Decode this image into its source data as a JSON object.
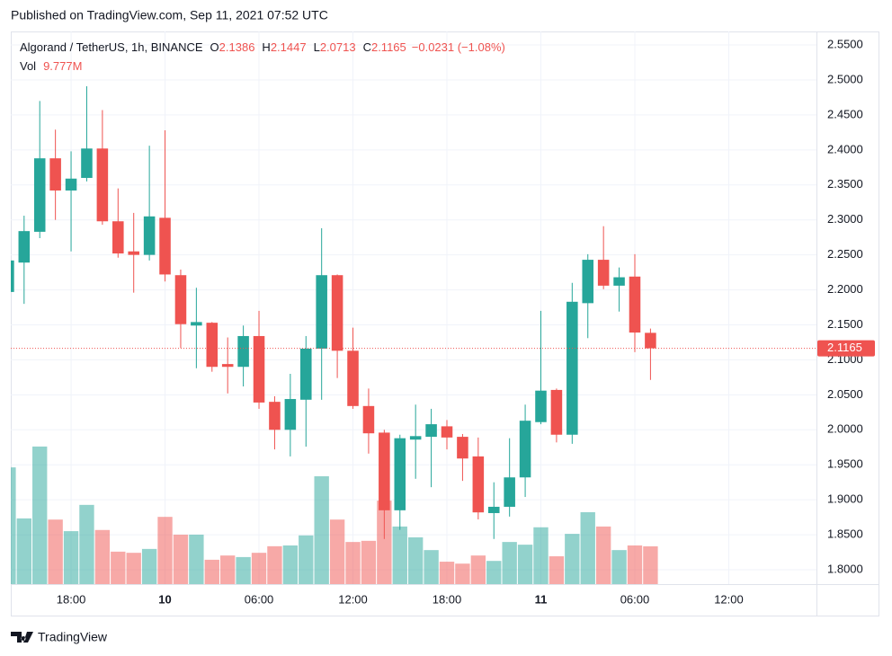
{
  "published": "Published on TradingView.com, Sep 11, 2021 07:52 UTC",
  "footer": "TradingView",
  "chart_data": {
    "type": "candlestick",
    "title": "Algorand / TetherUS, 1h, BINANCE",
    "ohlc_letters": [
      "O",
      "H",
      "L",
      "C"
    ],
    "change_label": "−0.0231 (−1.08%)",
    "up_color": "#26a69a",
    "down_color": "#ef5350",
    "x": [
      14,
      15,
      16,
      17,
      18,
      19,
      20,
      21,
      22,
      23,
      24,
      25,
      26,
      27,
      28,
      29,
      30,
      31,
      32,
      33,
      34,
      35,
      36,
      37,
      38,
      39,
      40,
      41,
      42,
      43,
      44,
      45,
      46,
      47,
      48,
      49,
      50,
      51,
      52,
      53,
      54,
      55
    ],
    "open": [
      2.197,
      2.239,
      2.283,
      2.388,
      2.342,
      2.36,
      2.402,
      2.298,
      2.255,
      2.25,
      2.303,
      2.221,
      2.149,
      2.153,
      2.094,
      2.09,
      2.134,
      2.04,
      2.0,
      2.043,
      2.116,
      2.221,
      2.113,
      2.034,
      1.996,
      1.885,
      1.986,
      1.99,
      2.005,
      1.99,
      1.962,
      1.881,
      1.89,
      1.932,
      2.011,
      2.057,
      1.993,
      2.181,
      2.243,
      2.206,
      2.219,
      2.1386
    ],
    "high": [
      2.245,
      2.306,
      2.47,
      2.429,
      2.398,
      2.491,
      2.457,
      2.345,
      2.31,
      2.406,
      2.428,
      2.229,
      2.203,
      2.154,
      2.132,
      2.149,
      2.17,
      2.048,
      2.08,
      2.134,
      2.288,
      2.222,
      2.146,
      2.059,
      2.0,
      1.993,
      2.036,
      2.03,
      2.014,
      1.994,
      1.989,
      1.925,
      1.988,
      2.036,
      2.17,
      2.059,
      2.21,
      2.251,
      2.291,
      2.232,
      2.251,
      2.1447
    ],
    "low": [
      2.19,
      2.18,
      2.274,
      2.3,
      2.255,
      2.355,
      2.293,
      2.246,
      2.196,
      2.242,
      2.212,
      2.117,
      2.088,
      2.083,
      2.052,
      2.062,
      2.03,
      1.972,
      1.962,
      1.976,
      2.043,
      2.074,
      2.03,
      1.966,
      1.844,
      1.857,
      1.93,
      1.918,
      1.972,
      1.927,
      1.872,
      1.844,
      1.876,
      1.904,
      2.008,
      1.982,
      1.98,
      2.131,
      2.201,
      2.169,
      2.111,
      2.0713
    ],
    "close": [
      2.242,
      2.284,
      2.388,
      2.342,
      2.359,
      2.402,
      2.298,
      2.252,
      2.25,
      2.305,
      2.222,
      2.151,
      2.154,
      2.09,
      2.09,
      2.134,
      2.039,
      2.0,
      2.044,
      2.116,
      2.221,
      2.113,
      2.034,
      1.995,
      1.885,
      1.988,
      1.991,
      2.008,
      1.989,
      1.959,
      1.882,
      1.89,
      1.932,
      2.013,
      2.056,
      1.993,
      2.183,
      2.243,
      2.206,
      2.218,
      2.139,
      2.1165
    ],
    "volume": {
      "name": "Vol",
      "axis": "y2",
      "value_label": "9.777M",
      "values": [
        30.2,
        17.0,
        35.6,
        16.7,
        13.7,
        20.5,
        14.0,
        8.4,
        8.1,
        9.1,
        17.4,
        12.8,
        12.8,
        6.3,
        7.4,
        7.0,
        8.1,
        9.8,
        10.0,
        12.6,
        27.9,
        16.7,
        10.9,
        11.2,
        21.6,
        14.9,
        12.1,
        8.8,
        5.8,
        5.3,
        7.4,
        6.0,
        10.9,
        10.2,
        14.7,
        7.2,
        13.0,
        18.6,
        14.9,
        8.8,
        10.0,
        9.777
      ]
    },
    "xlim": [
      14.15,
      65.6
    ],
    "xticks": [
      {
        "value": 18,
        "label": "18:00"
      },
      {
        "value": 24,
        "label": "10"
      },
      {
        "value": 30,
        "label": "06:00"
      },
      {
        "value": 36,
        "label": "12:00"
      },
      {
        "value": 42,
        "label": "18:00"
      },
      {
        "value": 48,
        "label": "11"
      },
      {
        "value": 54,
        "label": "06:00"
      },
      {
        "value": 60,
        "label": "12:00"
      }
    ],
    "ylim": [
      1.7795,
      2.5693
    ],
    "yticks": [
      {
        "value": 1.8,
        "label": "1.8000"
      },
      {
        "value": 1.85,
        "label": "1.8500"
      },
      {
        "value": 1.9,
        "label": "1.9000"
      },
      {
        "value": 1.95,
        "label": "1.9500"
      },
      {
        "value": 2.0,
        "label": "2.0000"
      },
      {
        "value": 2.05,
        "label": "2.0500"
      },
      {
        "value": 2.1,
        "label": "2.1000"
      },
      {
        "value": 2.15,
        "label": "2.1500"
      },
      {
        "value": 2.2,
        "label": "2.2000"
      },
      {
        "value": 2.25,
        "label": "2.2500"
      },
      {
        "value": 2.3,
        "label": "2.3000"
      },
      {
        "value": 2.35,
        "label": "2.3500"
      },
      {
        "value": 2.4,
        "label": "2.4000"
      },
      {
        "value": 2.45,
        "label": "2.4500"
      },
      {
        "value": 2.5,
        "label": "2.5000"
      },
      {
        "value": 2.55,
        "label": "2.5500"
      }
    ],
    "y2lim": [
      0,
      143
    ],
    "grid": true
  }
}
